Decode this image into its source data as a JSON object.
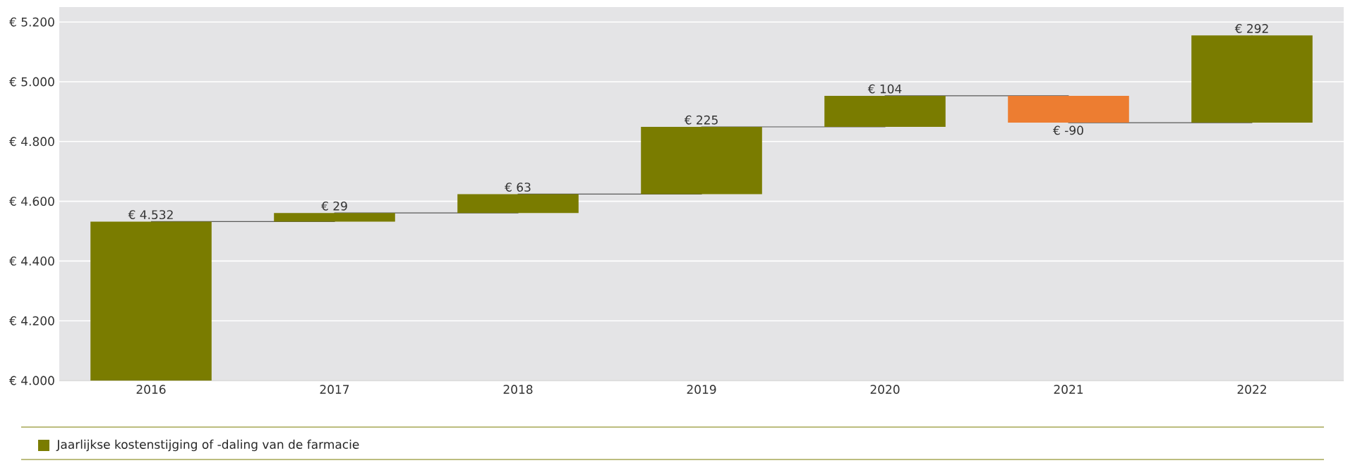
{
  "chart_data": {
    "type": "bar",
    "categories": [
      "2016",
      "2017",
      "2018",
      "2019",
      "2020",
      "2021",
      "2022"
    ],
    "series": [
      {
        "name": "Jaarlijkse kostenstijging of -daling van de farmacie",
        "color": "#7a7c00",
        "colors": [
          "#7a7c00",
          "#7a7c00",
          "#7a7c00",
          "#7a7c00",
          "#7a7c00",
          "#ed7d31",
          "#7a7c00"
        ],
        "values": [
          532,
          29,
          63,
          225,
          104,
          -90,
          292
        ],
        "base": [
          4000,
          4532,
          4561,
          4624,
          4849,
          4953,
          4863
        ],
        "value_labels": [
          "€ 4.532",
          "€ 29",
          "€ 63",
          "€ 225",
          "€ 104",
          "€ -90",
          "€ 292"
        ]
      },
      {
        "type": "step",
        "color": "#595959",
        "values": [
          4532,
          4561,
          4624,
          4849,
          4953,
          4863,
          5155
        ]
      }
    ],
    "ylim": [
      4000,
      5250
    ],
    "yticks": [
      {
        "value": 4000,
        "label": "€ 4.000"
      },
      {
        "value": 4200,
        "label": "€ 4.200"
      },
      {
        "value": 4400,
        "label": "€ 4.400"
      },
      {
        "value": 4600,
        "label": "€ 4.600"
      },
      {
        "value": 4800,
        "label": "€ 4.800"
      },
      {
        "value": 5000,
        "label": "€ 5.000"
      },
      {
        "value": 5200,
        "label": "€ 5.200"
      }
    ],
    "grid": "y",
    "legend": "bottom"
  }
}
